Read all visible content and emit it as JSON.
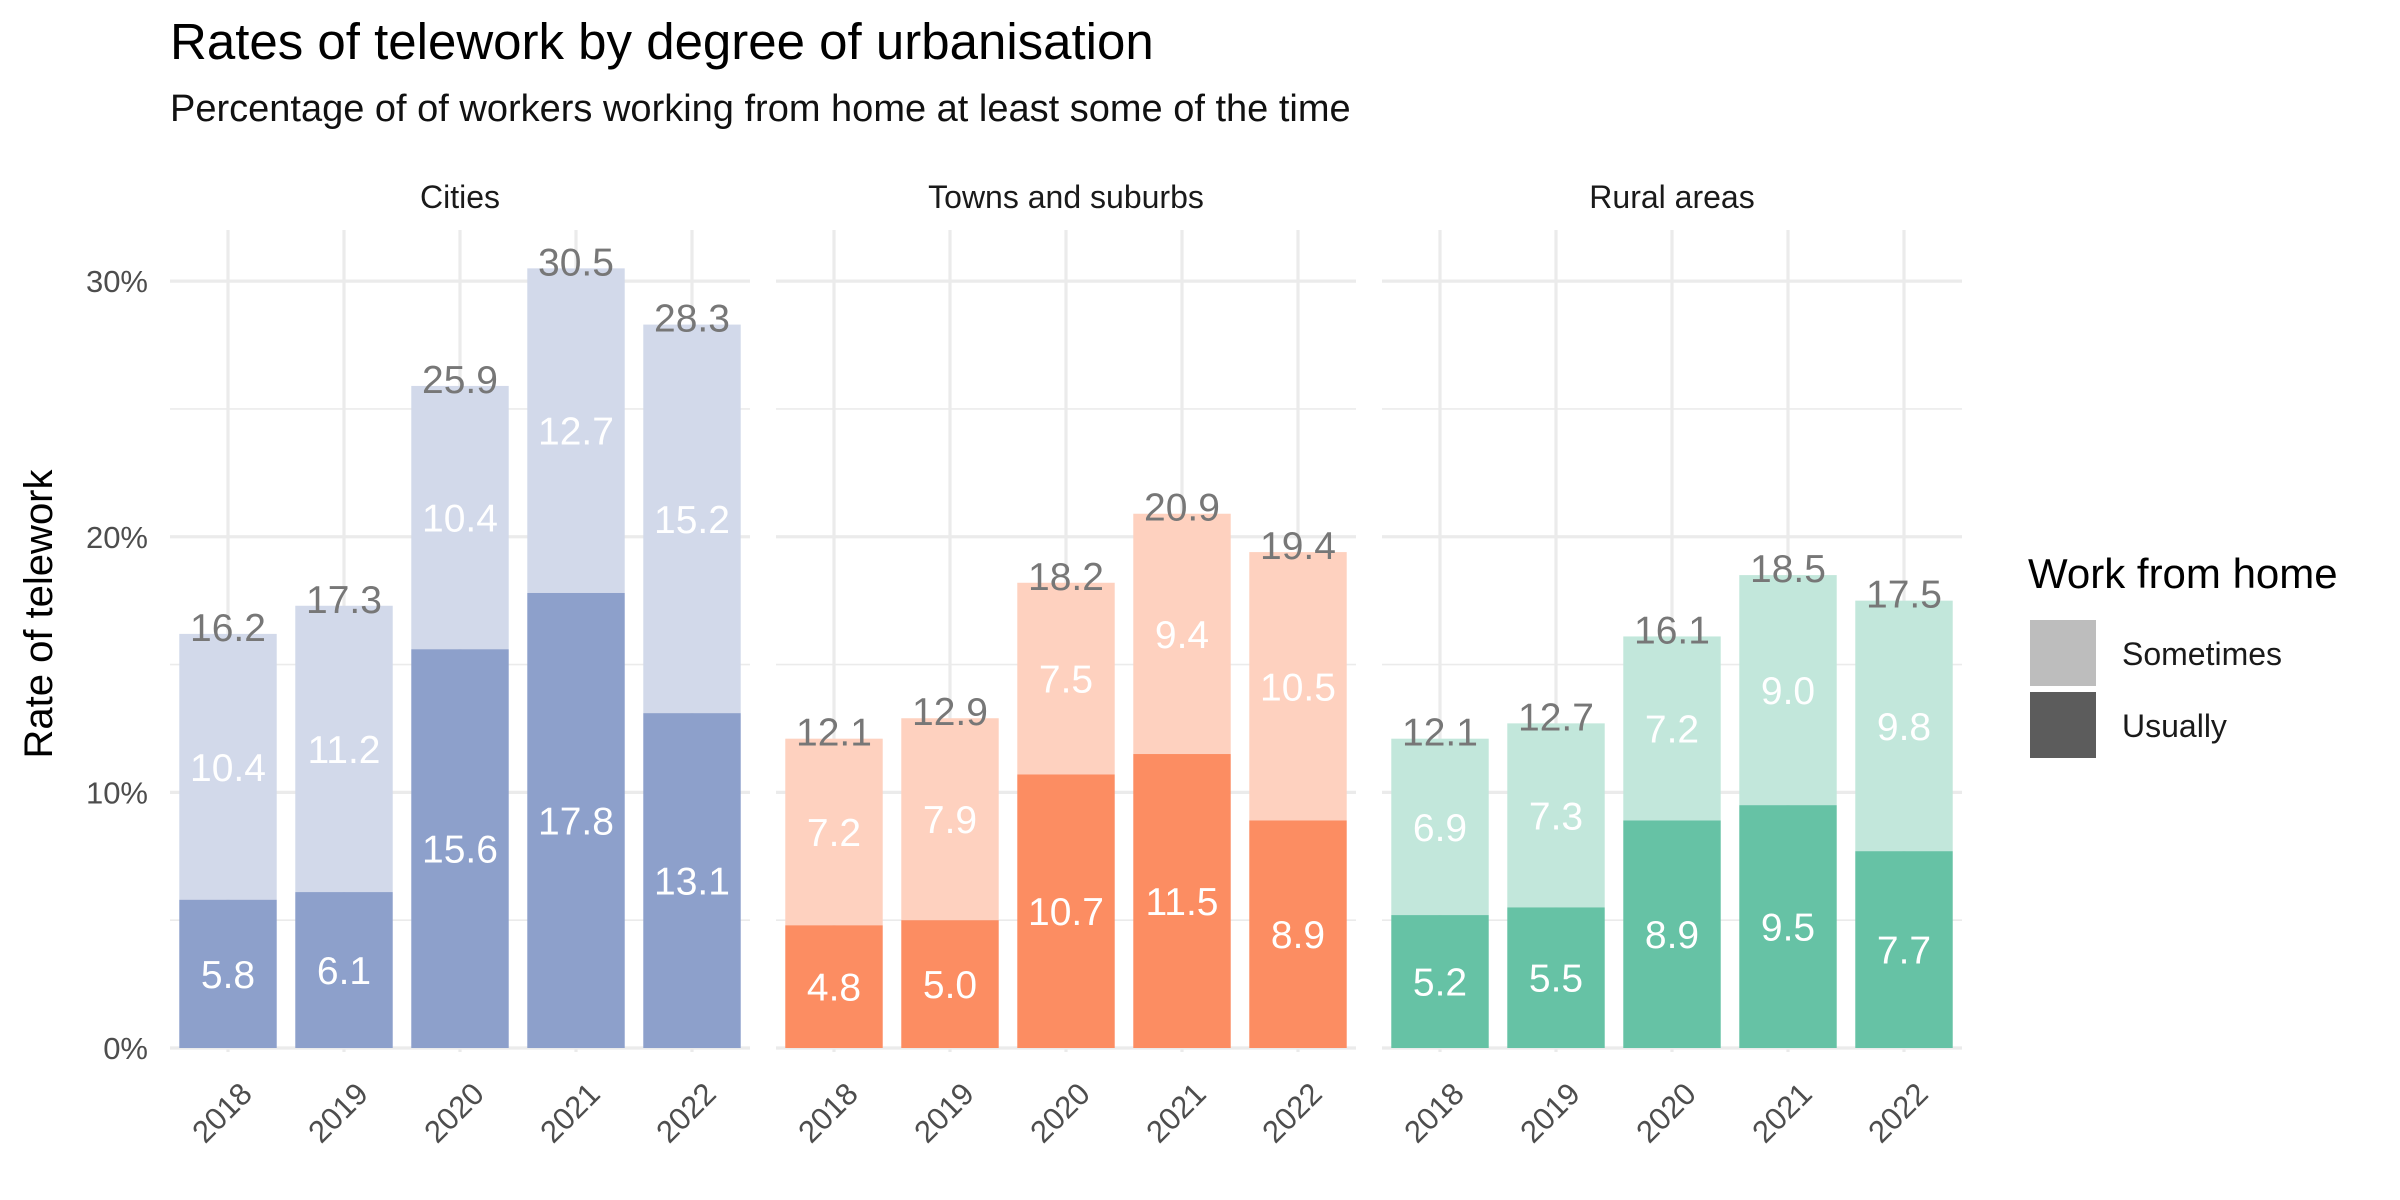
{
  "chart_data": {
    "type": "bar",
    "stacked": true,
    "title": "Rates of telework by degree of urbanisation",
    "subtitle": "Percentage of of workers working from home at least some of the time",
    "ylabel": "Rate of telework",
    "xlabel": "",
    "ylim": [
      0,
      32
    ],
    "yticks": [
      0,
      10,
      20,
      30
    ],
    "ytick_labels": [
      "0%",
      "10%",
      "20%",
      "30%"
    ],
    "grid": true,
    "legend": {
      "title": "Work from home",
      "placement": "right",
      "entries": [
        {
          "name": "Sometimes",
          "swatch": "#bdbdbd"
        },
        {
          "name": "Usually",
          "swatch": "#5c5c5c"
        }
      ]
    },
    "categories": [
      "2018",
      "2019",
      "2020",
      "2021",
      "2022"
    ],
    "facets": [
      {
        "name": "Cities",
        "color_usually": "#8da0cb",
        "color_sometimes": "#d2d9ea",
        "usually": [
          5.8,
          6.1,
          15.6,
          17.8,
          13.1
        ],
        "sometimes": [
          10.4,
          11.2,
          10.4,
          12.7,
          15.2
        ],
        "total": [
          16.2,
          17.3,
          25.9,
          30.5,
          28.3
        ],
        "usually_labels": [
          "5.8",
          "6.1",
          "15.6",
          "17.8",
          "13.1"
        ],
        "sometimes_labels": [
          "10.4",
          "11.2",
          "10.4",
          "12.7",
          "15.2"
        ],
        "total_labels": [
          "16.2",
          "17.3",
          "25.9",
          "30.5",
          "28.3"
        ]
      },
      {
        "name": "Towns and suburbs",
        "color_usually": "#fc8d62",
        "color_sometimes": "#fed1bf",
        "usually": [
          4.8,
          5.0,
          10.7,
          11.5,
          8.9
        ],
        "sometimes": [
          7.2,
          7.9,
          7.5,
          9.4,
          10.5
        ],
        "total": [
          12.1,
          12.9,
          18.2,
          20.9,
          19.4
        ],
        "usually_labels": [
          "4.8",
          "5.0",
          "10.7",
          "11.5",
          "8.9"
        ],
        "sometimes_labels": [
          "7.2",
          "7.9",
          "7.5",
          "9.4",
          "10.5"
        ],
        "total_labels": [
          "12.1",
          "12.9",
          "18.2",
          "20.9",
          "19.4"
        ]
      },
      {
        "name": "Rural areas",
        "color_usually": "#66c2a5",
        "color_sometimes": "#c2e7db",
        "usually": [
          5.2,
          5.5,
          8.9,
          9.5,
          7.7
        ],
        "sometimes": [
          6.9,
          7.3,
          7.2,
          9.0,
          9.8
        ],
        "total": [
          12.1,
          12.7,
          16.1,
          18.5,
          17.5
        ],
        "usually_labels": [
          "5.2",
          "5.5",
          "8.9",
          "9.5",
          "7.7"
        ],
        "sometimes_labels": [
          "6.9",
          "7.3",
          "7.2",
          "9.0",
          "9.8"
        ],
        "total_labels": [
          "12.1",
          "12.7",
          "16.1",
          "18.5",
          "17.5"
        ]
      }
    ]
  }
}
